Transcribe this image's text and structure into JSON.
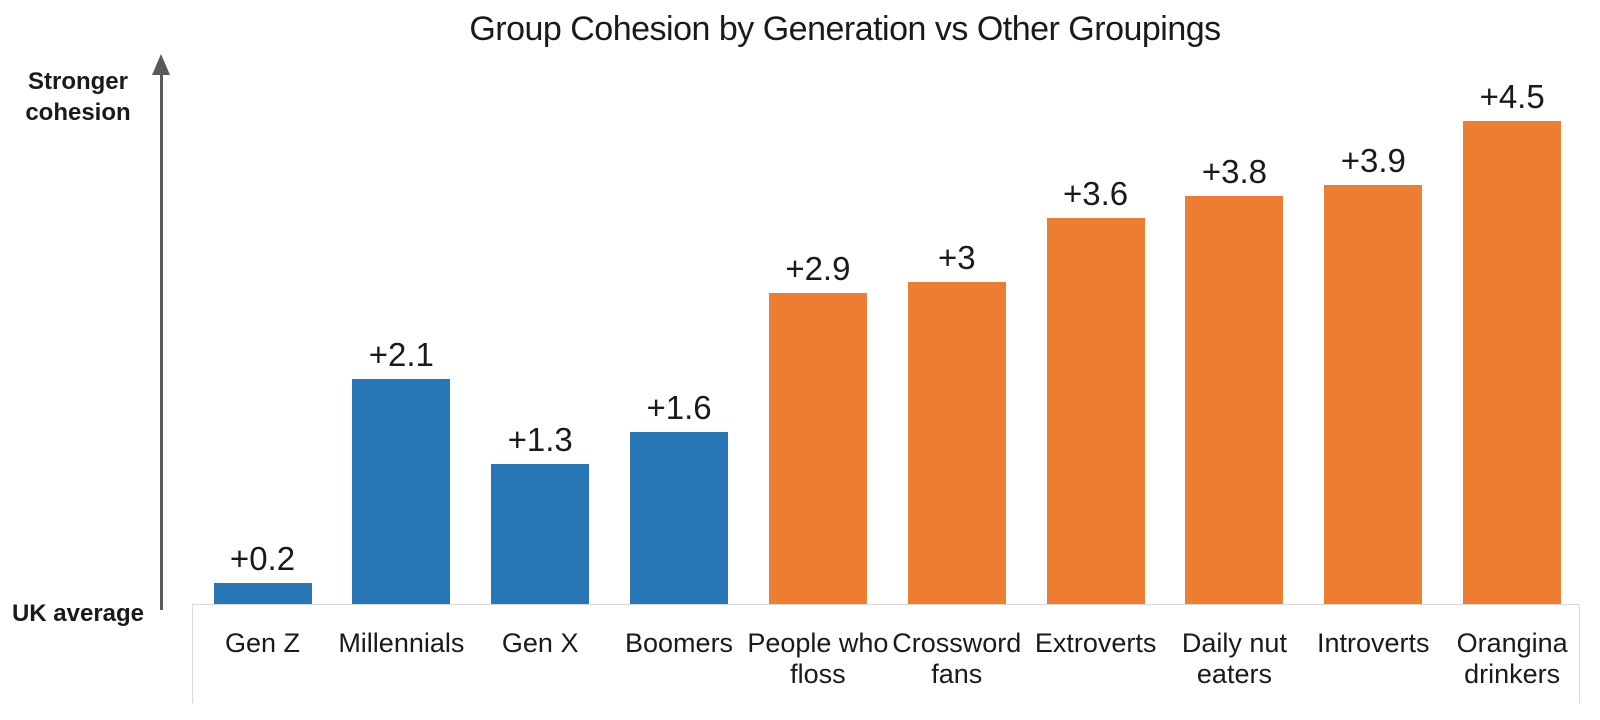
{
  "chart_data": {
    "type": "bar",
    "title": "Group Cohesion by Generation vs Other Groupings",
    "categories": [
      "Gen Z",
      "Millennials",
      "Gen X",
      "Boomers",
      "People who floss",
      "Crossword fans",
      "Extroverts",
      "Daily nut eaters",
      "Introverts",
      "Orangina drinkers"
    ],
    "values": [
      0.2,
      2.1,
      1.3,
      1.6,
      2.9,
      3,
      3.6,
      3.8,
      3.9,
      4.5
    ],
    "value_labels": [
      "+0.2",
      "+2.1",
      "+1.3",
      "+1.6",
      "+2.9",
      "+3",
      "+3.6",
      "+3.8",
      "+3.9",
      "+4.5"
    ],
    "groups": [
      "generation",
      "generation",
      "generation",
      "generation",
      "other",
      "other",
      "other",
      "other",
      "other",
      "other"
    ],
    "group_colors": {
      "generation": "#2976B6",
      "other": "#ED7D31"
    },
    "yaxis_top_label": "Stronger cohesion",
    "yaxis_baseline_label": "UK average",
    "ylim": [
      0,
      4.5
    ],
    "xlabel": "",
    "ylabel": "",
    "grid": false,
    "legend": false,
    "axis_color": "#595959",
    "category_box_border_color": "#d9d9d9"
  }
}
